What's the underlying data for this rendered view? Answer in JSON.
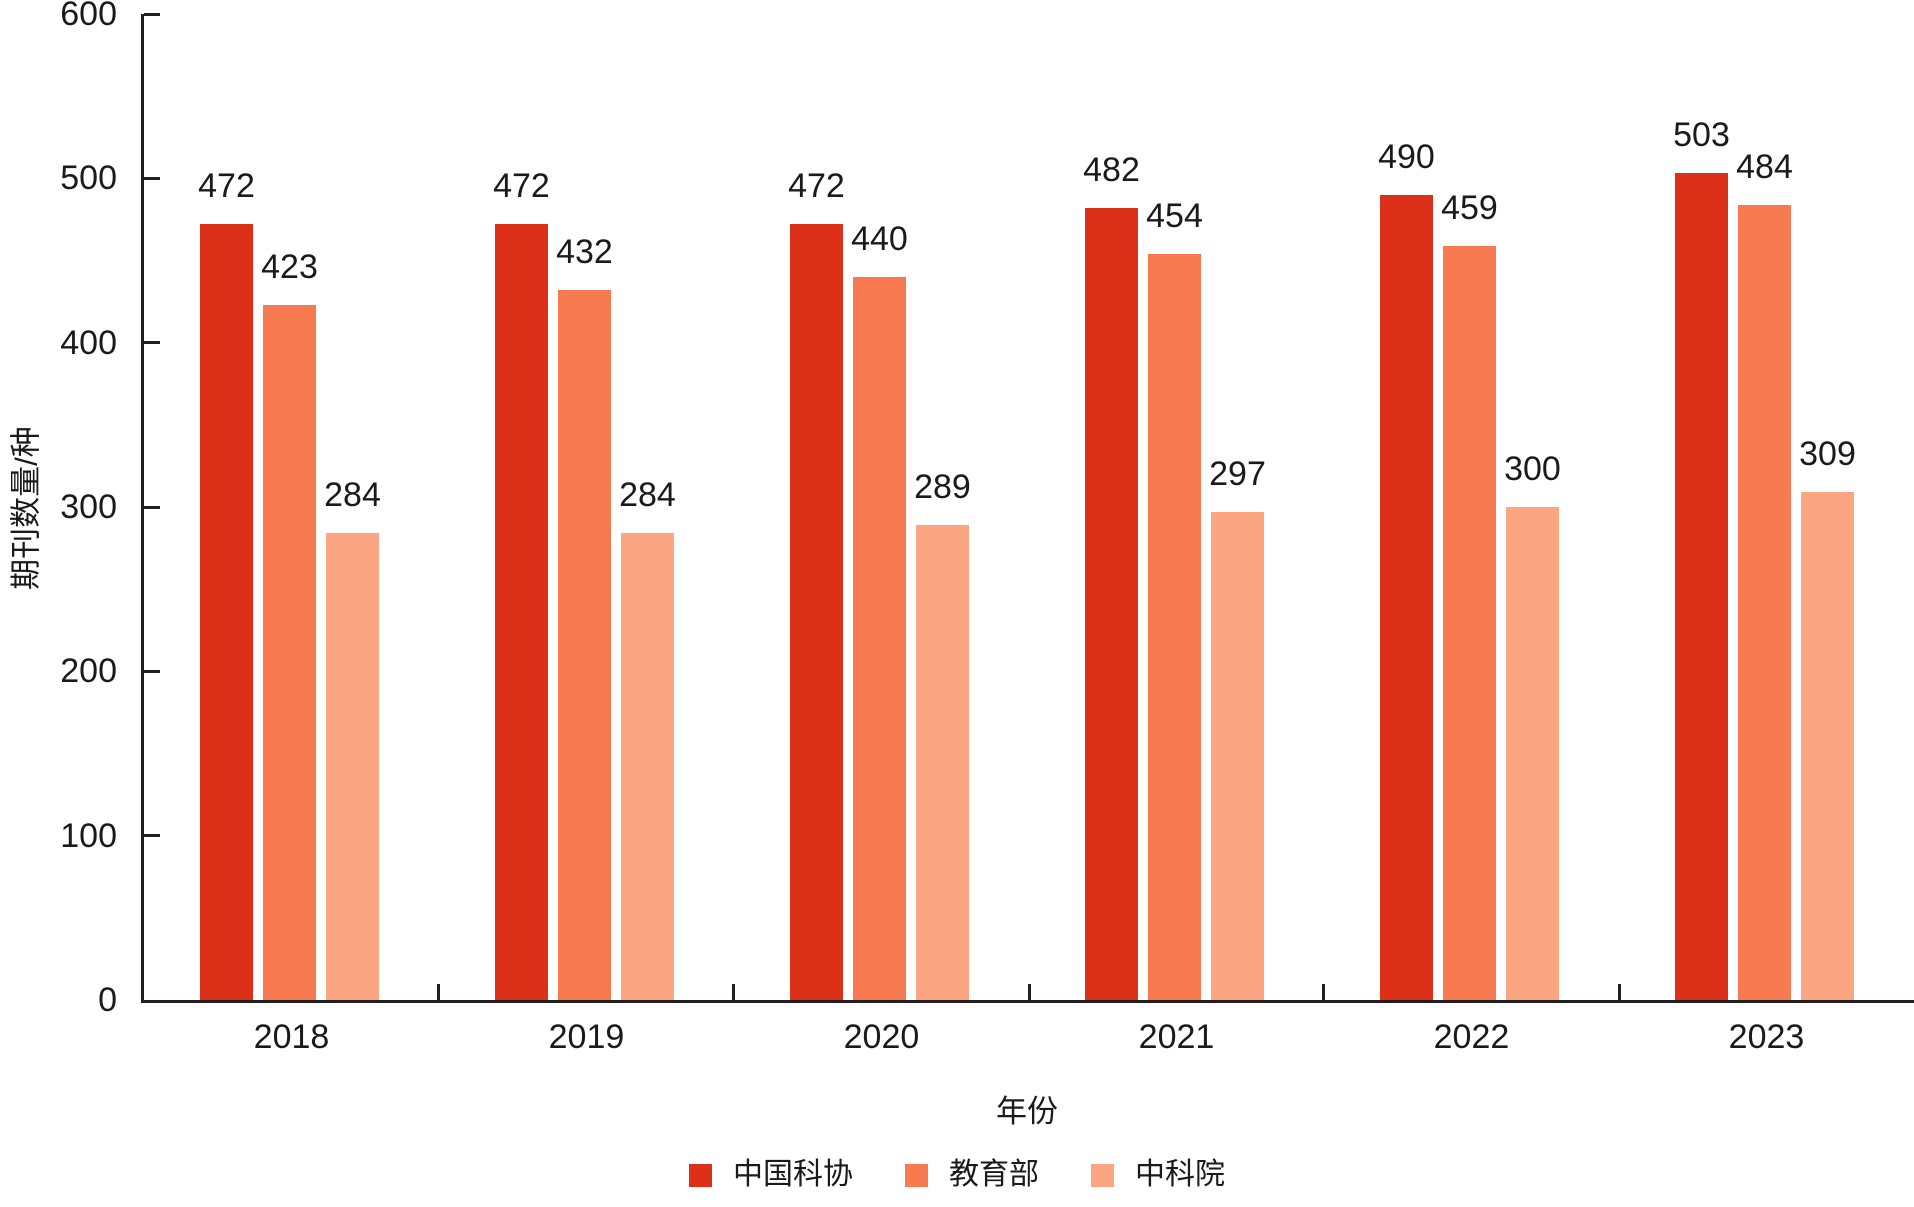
{
  "chart_data": {
    "type": "bar",
    "title": "",
    "categories": [
      "2018",
      "2019",
      "2020",
      "2021",
      "2022",
      "2023"
    ],
    "series": [
      {
        "name": "中国科协",
        "color": "#dc3118",
        "values": [
          472,
          472,
          472,
          482,
          490,
          503
        ]
      },
      {
        "name": "教育部",
        "color": "#f87a50",
        "values": [
          423,
          432,
          440,
          454,
          459,
          484
        ]
      },
      {
        "name": "中科院",
        "color": "#fca583",
        "values": [
          284,
          284,
          289,
          297,
          300,
          309
        ]
      }
    ],
    "xlabel": "年份",
    "ylabel": "期刊数量/种",
    "ylim": [
      0,
      600
    ],
    "ytick_step": 100,
    "ytick_labels": [
      "0",
      "100",
      "200",
      "300",
      "400",
      "500",
      "600"
    ],
    "grid": false,
    "legend_position": "bottom",
    "axis_color": "#231f20",
    "value_labels_shown": true
  }
}
